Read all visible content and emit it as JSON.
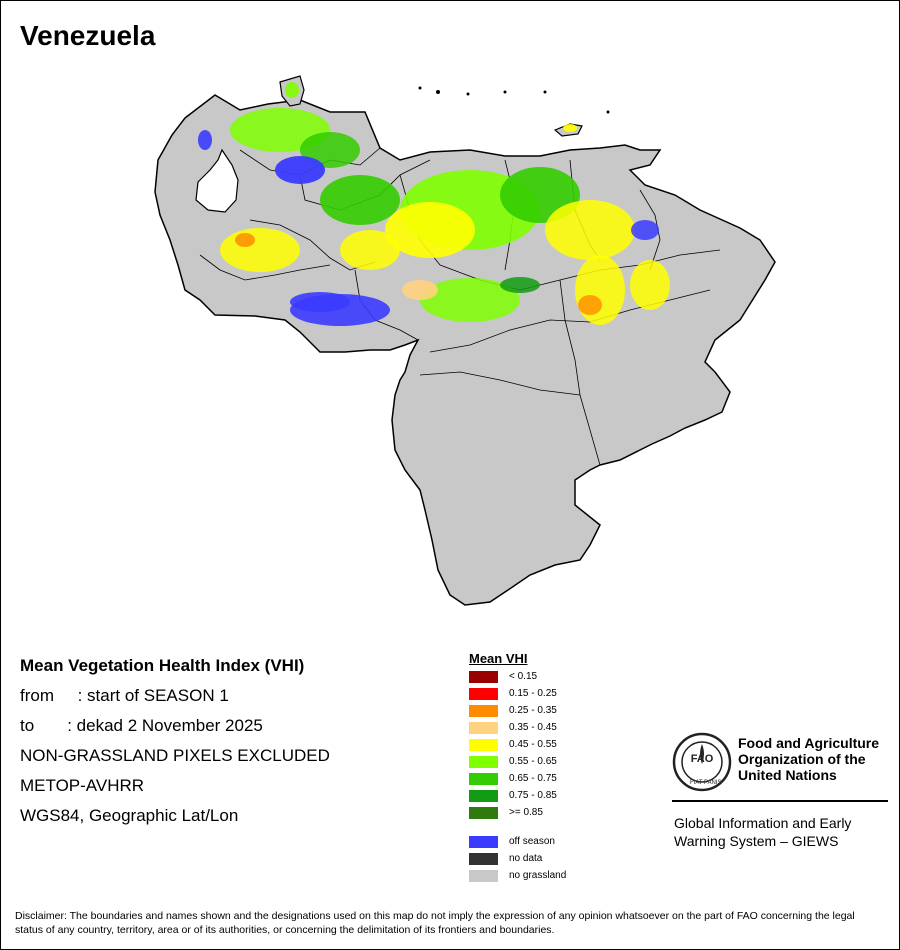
{
  "title": "Venezuela",
  "info": {
    "heading": "Mean Vegetation Health Index (VHI)",
    "from": "from     : start of SEASON 1",
    "to": "to       : dekad 2 November 2025",
    "exclusion": "NON-GRASSLAND PIXELS EXCLUDED",
    "sensor": "METOP-AVHRR",
    "projection": "WGS84, Geographic Lat/Lon"
  },
  "legend": {
    "title": "Mean VHI",
    "classes": [
      {
        "label": "< 0.15",
        "color": "#990000"
      },
      {
        "label": "0.15 - 0.25",
        "color": "#ff0000"
      },
      {
        "label": "0.25 - 0.35",
        "color": "#ff8c00"
      },
      {
        "label": "0.35 - 0.45",
        "color": "#ffd27f"
      },
      {
        "label": "0.45 - 0.55",
        "color": "#ffff00"
      },
      {
        "label": "0.55 - 0.65",
        "color": "#7fff00"
      },
      {
        "label": "0.65 - 0.75",
        "color": "#33cc00"
      },
      {
        "label": "0.75 - 0.85",
        "color": "#139b13"
      },
      {
        "label": ">= 0.85",
        "color": "#2e7a0f"
      }
    ],
    "other": [
      {
        "label": "off season",
        "color": "#3b3bff"
      },
      {
        "label": "no data",
        "color": "#333333"
      },
      {
        "label": "no grassland",
        "color": "#c8c8c8"
      }
    ]
  },
  "logo": {
    "org_line1": "Food and Agriculture",
    "org_line2": "Organization of the",
    "org_line3": "United Nations",
    "emblem_text": "FAO",
    "motto_left": "FIAT",
    "motto_right": "PANIS"
  },
  "giews": {
    "line1": "Global Information and Early",
    "line2": "Warning System – GIEWS"
  },
  "disclaimer": "Disclaimer: The boundaries and names shown and the designations used on this map do not imply the expression of any opinion whatsoever on the part of FAO concerning the legal status of any country, territory, area or of its authorities, or concerning the delimitation of its frontiers and boundaries."
}
